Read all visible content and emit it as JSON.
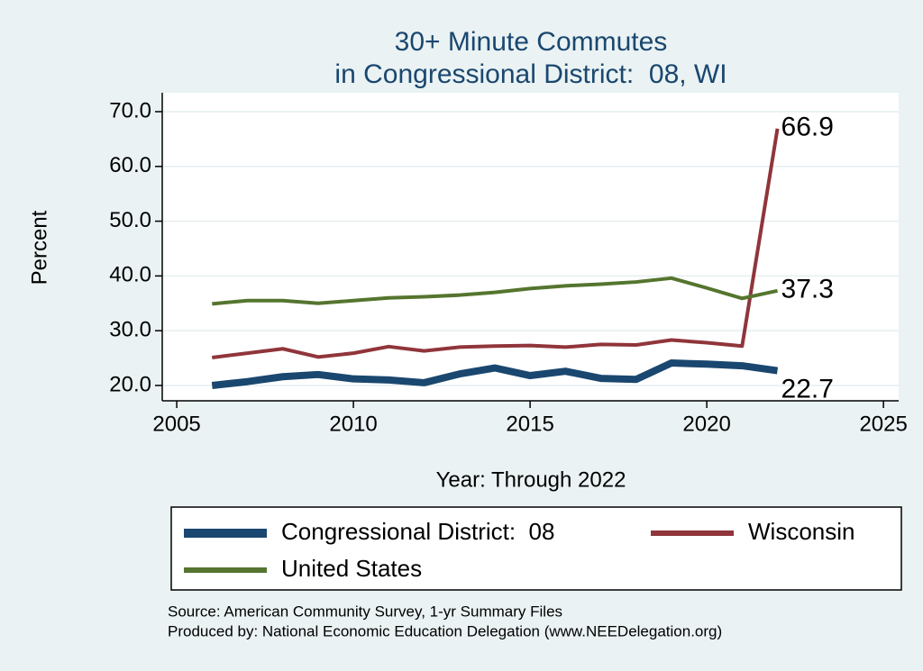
{
  "chart_data": {
    "type": "line",
    "title": [
      "30+ Minute Commutes",
      "in Congressional District:  08, WI"
    ],
    "x_label": "Year: Through 2022",
    "y_label": "Percent",
    "x": [
      2006,
      2007,
      2008,
      2009,
      2010,
      2011,
      2012,
      2013,
      2014,
      2015,
      2016,
      2017,
      2018,
      2019,
      2020,
      2021,
      2022
    ],
    "series": [
      {
        "name": "Congressional District:  08",
        "color": "#1a476f",
        "width": 8,
        "values": [
          20.0,
          20.7,
          21.6,
          22.0,
          21.2,
          21.0,
          20.5,
          22.1,
          23.2,
          21.8,
          22.6,
          21.3,
          21.1,
          24.1,
          23.9,
          23.6,
          22.7
        ]
      },
      {
        "name": "Wisconsin",
        "color": "#90353b",
        "width": 4,
        "values": [
          25.1,
          25.9,
          26.7,
          25.2,
          25.9,
          27.1,
          26.3,
          27.0,
          27.2,
          27.3,
          27.0,
          27.5,
          27.4,
          28.3,
          27.8,
          27.2,
          66.9
        ]
      },
      {
        "name": "United States",
        "color": "#55752f",
        "width": 4,
        "values": [
          34.9,
          35.5,
          35.5,
          35.0,
          35.5,
          36.0,
          36.2,
          36.5,
          37.0,
          37.7,
          38.2,
          38.5,
          38.9,
          39.6,
          37.8,
          35.9,
          37.3
        ]
      }
    ],
    "xlim": [
      2004.59,
      2025.43
    ],
    "ylim": [
      17.2,
      73.45
    ],
    "xticks": [
      2005,
      2010,
      2015,
      2020,
      2025
    ],
    "yticks": [
      {
        "value": 20,
        "label": "20.0"
      },
      {
        "value": 30,
        "label": "30.0"
      },
      {
        "value": 40,
        "label": "40.0"
      },
      {
        "value": 50,
        "label": "50.0"
      },
      {
        "value": 60,
        "label": "60.0"
      },
      {
        "value": 70,
        "label": "70.0"
      }
    ],
    "grid": true,
    "end_labels": true,
    "source": "Source: American Community Survey, 1-yr Summary Files",
    "credit": "Produced by: National Economic Education Delegation (www.NEEDelegation.org)"
  }
}
